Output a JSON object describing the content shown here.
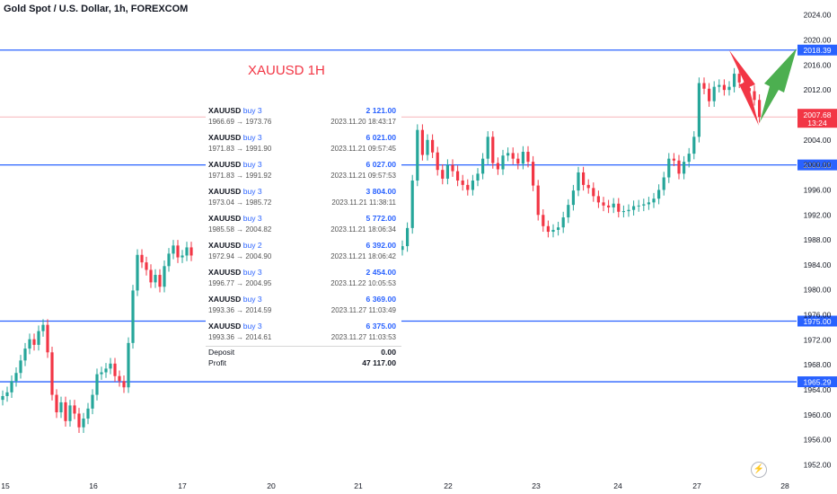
{
  "header": {
    "title": "Gold Spot / U.S. Dollar, 1h, FOREXCOM"
  },
  "overlay": {
    "title": "XAUUSD 1H"
  },
  "colors": {
    "up": "#26a69a",
    "down": "#f23645",
    "level": "#2962ff",
    "current": "#f23645",
    "arrow_up": "#4caf50",
    "arrow_down": "#f23645"
  },
  "trades": [
    {
      "symbol": "XAUUSD",
      "side": "buy 3",
      "amount": "2 121.00",
      "range": "1966.69 → 1973.76",
      "time": "2023.11.20 18:43:17"
    },
    {
      "symbol": "XAUUSD",
      "side": "buy 3",
      "amount": "6 021.00",
      "range": "1971.83 → 1991.90",
      "time": "2023.11.21 09:57:45"
    },
    {
      "symbol": "XAUUSD",
      "side": "buy 3",
      "amount": "6 027.00",
      "range": "1971.83 → 1991.92",
      "time": "2023.11.21 09:57:53"
    },
    {
      "symbol": "XAUUSD",
      "side": "buy 3",
      "amount": "3 804.00",
      "range": "1973.04 → 1985.72",
      "time": "2023.11.21 11:38:11"
    },
    {
      "symbol": "XAUUSD",
      "side": "buy 3",
      "amount": "5 772.00",
      "range": "1985.58 → 2004.82",
      "time": "2023.11.21 18:06:34"
    },
    {
      "symbol": "XAUUSD",
      "side": "buy 2",
      "amount": "6 392.00",
      "range": "1972.94 → 2004.90",
      "time": "2023.11.21 18:06:42"
    },
    {
      "symbol": "XAUUSD",
      "side": "buy 3",
      "amount": "2 454.00",
      "range": "1996.77 → 2004.95",
      "time": "2023.11.22 10:05:53"
    },
    {
      "symbol": "XAUUSD",
      "side": "buy 3",
      "amount": "6 369.00",
      "range": "1993.36 → 2014.59",
      "time": "2023.11.27 11:03:49"
    },
    {
      "symbol": "XAUUSD",
      "side": "buy 3",
      "amount": "6 375.00",
      "range": "1993.36 → 2014.61",
      "time": "2023.11.27 11:03:53"
    }
  ],
  "summary": {
    "deposit_label": "Deposit",
    "deposit_value": "0.00",
    "profit_label": "Profit",
    "profit_value": "47 117.00"
  },
  "chart_data": {
    "type": "candlestick",
    "ylim": [
      1950.2,
      2026.4
    ],
    "y_ticks": [
      "2024.00",
      "2020.00",
      "2016.00",
      "2012.00",
      "2008.00",
      "2004.00",
      "2000.00",
      "1996.00",
      "1992.00",
      "1988.00",
      "1984.00",
      "1980.00",
      "1976.00",
      "1972.00",
      "1968.00",
      "1964.00",
      "1960.00",
      "1956.00",
      "1952.00"
    ],
    "x_ticks": [
      "15",
      "16",
      "17",
      "20",
      "21",
      "22",
      "23",
      "24",
      "27",
      "28"
    ],
    "levels": [
      {
        "price": 2018.39,
        "label": "2018.39"
      },
      {
        "price": 2000.0,
        "label": "2000.00"
      },
      {
        "price": 1975.0,
        "label": "1975.00"
      },
      {
        "price": 1965.29,
        "label": "1965.29"
      }
    ],
    "current_price": {
      "price": 2007.68,
      "label": "2007.68",
      "countdown": "13:24"
    },
    "entry_price": 2007.68,
    "closes_segment_1": [
      1963,
      1963.6,
      1965.4,
      1966.7,
      1968.7,
      1970.6,
      1972.1,
      1971.2,
      1973.4,
      1974.4,
      1970,
      1963.2,
      1960.4,
      1962,
      1959,
      1961.5,
      1960.2,
      1958,
      1959.4,
      1961,
      1963.2,
      1966.5,
      1966.8,
      1967.4,
      1968.2,
      1966.2,
      1965.4,
      1964.4,
      1971.5,
      1979.9,
      1985.6,
      1984.4,
      1983.2,
      1981.2,
      1982.4,
      1980.5,
      1983.8,
      1985.8,
      1987.1,
      1985.2,
      1985.5,
      1986.8,
      1985.5
    ],
    "closes_segment_2": [
      1987,
      1989.9,
      1997.5,
      2005.6,
      2001.6,
      2004,
      2002,
      1999.2,
      1997.8,
      2000,
      1999,
      1997.5,
      1996.8,
      1996,
      1997.5,
      1998.6,
      2001,
      2004.5,
      2000.3,
      1999.3,
      2001.5,
      2001.9,
      2001,
      2000.2,
      2002.1,
      2000.5,
      1996.7,
      1992,
      1990.2,
      1989.3,
      1989.6,
      1990,
      1991.6,
      1993.6,
      1995.9,
      1998.8,
      1996.8,
      1996.3,
      1995,
      1994,
      1993.5,
      1993.2,
      1993.8,
      1992.5,
      1992.6,
      1992.8,
      1993.4,
      1993.5,
      1993.7,
      1994,
      1994.6,
      1996,
      1998,
      2001,
      2000.7,
      1998.6,
      2000.5,
      2001.8,
      2004.5,
      2013.1,
      2012.2,
      2010.2,
      2012.5,
      2012.8,
      2012,
      2012.5,
      2014.6,
      2013.2,
      2012.3,
      2011.8,
      2010.4,
      2007.68
    ]
  }
}
